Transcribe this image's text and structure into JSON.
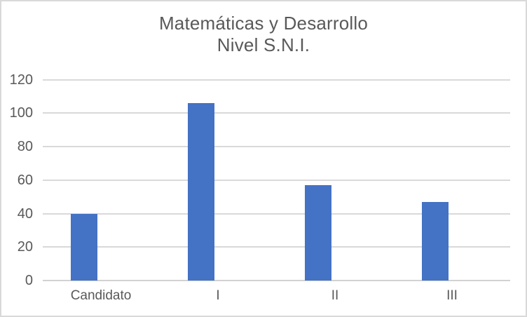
{
  "window": {
    "background": "#FFFFFF",
    "border_color": "#D9D9D9"
  },
  "chart": {
    "title_line1": "Matemáticas y Desarrollo",
    "title_line2": "Nivel S.N.I."
  },
  "chart_data": {
    "type": "bar",
    "title": "Matemáticas y Desarrollo Nivel S.N.I.",
    "title_lines": [
      "Matemáticas y Desarrollo",
      "Nivel S.N.I."
    ],
    "categories": [
      "Candidato",
      "I",
      "II",
      "III"
    ],
    "values": [
      40,
      106,
      57,
      47
    ],
    "xlabel": "",
    "ylabel": "",
    "ylim": [
      0,
      120
    ],
    "ytick_step": 20,
    "yticks": [
      0,
      20,
      40,
      60,
      80,
      100,
      120
    ],
    "ytick_labels": [
      "0",
      "20",
      "40",
      "60",
      "80",
      "100",
      "120"
    ],
    "grid": true,
    "legend": false,
    "bar_color": "#4472C4",
    "gridline_color": "#D9D9D9",
    "axis_line_color": "#D2D2D2",
    "tick_label_color": "#595959",
    "title_color": "#595959"
  }
}
